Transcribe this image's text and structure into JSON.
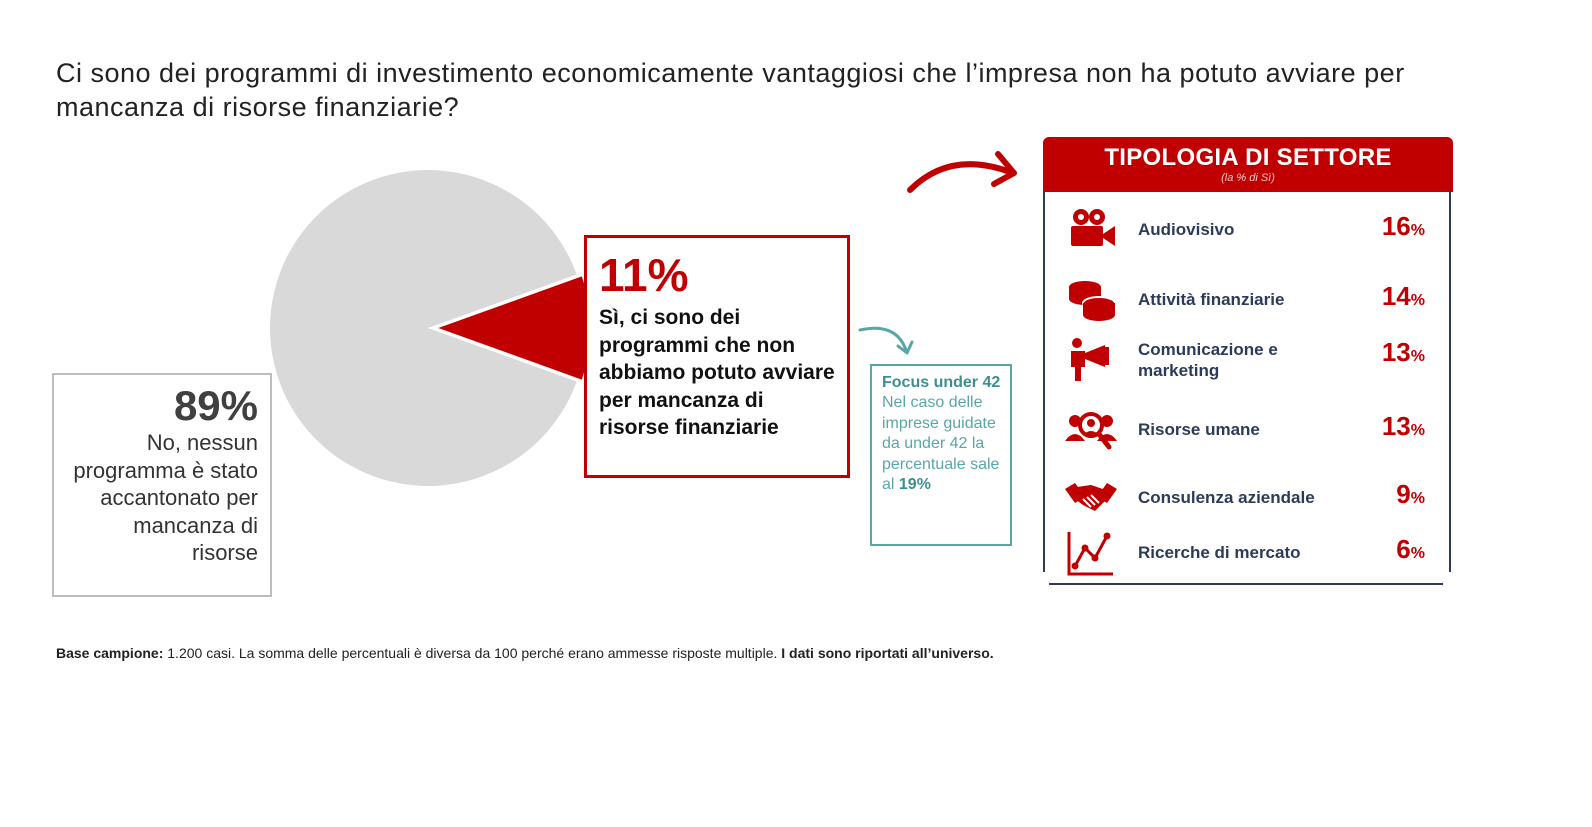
{
  "title": "Ci sono dei programmi di investimento economicamente vantaggiosi che l’impresa non ha potuto avviare per mancanza di risorse finanziarie?",
  "no_block": {
    "pct": "89%",
    "text": "No, nessun programma è stato accantonato per mancanza di risorse"
  },
  "yes_block": {
    "pct": "11%",
    "text": "Sì, ci sono dei programmi che non abbiamo potuto avviare per mancanza di risorse finanziarie"
  },
  "focus": {
    "title": "Focus under 42",
    "text": "Nel caso delle imprese guidate da under 42 la percentuale sale al",
    "value": "19%"
  },
  "sector": {
    "title": "TIPOLOGIA DI SETTORE",
    "subtitle": "(la % di Sì)"
  },
  "colors": {
    "accent": "#c00000",
    "pie_rest": "#d9d9d9",
    "navy": "#2d3b5a",
    "teal": "#5aa6a6"
  },
  "footnote": {
    "bold1": "Base campione:",
    "text": " 1.200 casi. La somma delle percentuali è diversa da 100 perché erano ammesse risposte multiple. ",
    "bold2": "I dati sono riportati all’universo."
  },
  "chart_data": [
    {
      "type": "pie",
      "categories": [
        "Sì",
        "No"
      ],
      "values": [
        11,
        89
      ],
      "colors": [
        "#c00000",
        "#d9d9d9"
      ]
    },
    {
      "type": "table",
      "title": "TIPOLOGIA DI SETTORE",
      "subtitle": "(la % di Sì)",
      "rows": [
        {
          "label": "Audiovisivo",
          "value": 16,
          "icon": "movie-camera-icon"
        },
        {
          "label": "Attività finanziarie",
          "value": 14,
          "icon": "coins-icon"
        },
        {
          "label": "Comunicazione e marketing",
          "value": 13,
          "icon": "megaphone-person-icon"
        },
        {
          "label": "Risorse umane",
          "value": 13,
          "icon": "people-search-icon"
        },
        {
          "label": "Consulenza aziendale",
          "value": 9,
          "icon": "handshake-icon"
        },
        {
          "label": "Ricerche di mercato",
          "value": 6,
          "icon": "line-chart-icon"
        }
      ]
    }
  ]
}
